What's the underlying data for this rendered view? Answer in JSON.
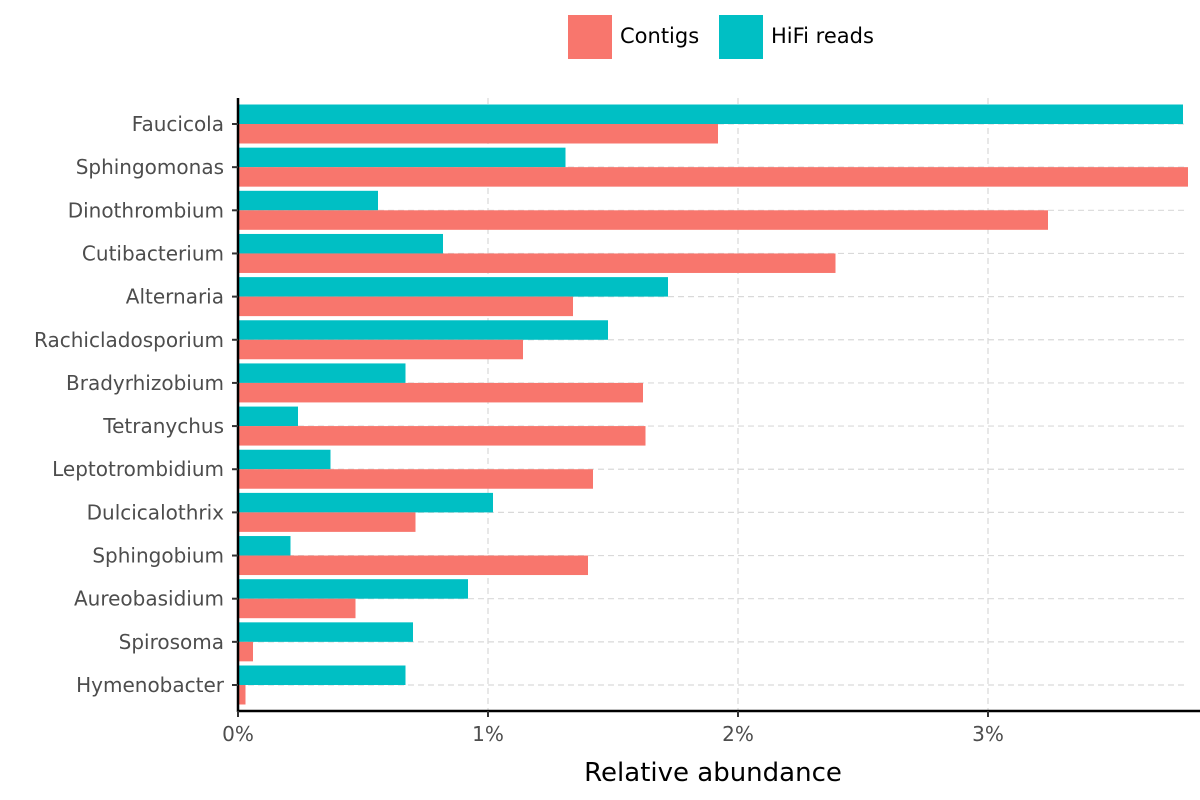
{
  "chart_data": {
    "type": "bar",
    "orientation": "horizontal",
    "title": "",
    "xlabel": "Relative abundance",
    "ylabel": "",
    "xlim": [
      0,
      3.8
    ],
    "x_unit": "%",
    "x_ticks": [
      0,
      1,
      2,
      3
    ],
    "x_tick_labels": [
      "0%",
      "1%",
      "2%",
      "3%"
    ],
    "grid": "dashed major gridlines",
    "legend_position": "top",
    "categories": [
      "Faucicola",
      "Sphingomonas",
      "Dinothrombium",
      "Cutibacterium",
      "Alternaria",
      "Rachicladosporium",
      "Bradyrhizobium",
      "Tetranychus",
      "Leptotrombidium",
      "Dulcicalothrix",
      "Sphingobium",
      "Aureobasidium",
      "Spirosoma",
      "Hymenobacter"
    ],
    "series": [
      {
        "name": "Contigs",
        "color": "#F8766D",
        "values": [
          1.92,
          3.8,
          3.24,
          2.39,
          1.34,
          1.14,
          1.62,
          1.63,
          1.42,
          0.71,
          1.4,
          0.47,
          0.06,
          0.03
        ]
      },
      {
        "name": "HiFi reads",
        "color": "#00BFC4",
        "values": [
          3.78,
          1.31,
          0.56,
          0.82,
          1.72,
          1.48,
          0.67,
          0.24,
          0.37,
          1.02,
          0.21,
          0.92,
          0.7,
          0.67
        ]
      }
    ]
  }
}
